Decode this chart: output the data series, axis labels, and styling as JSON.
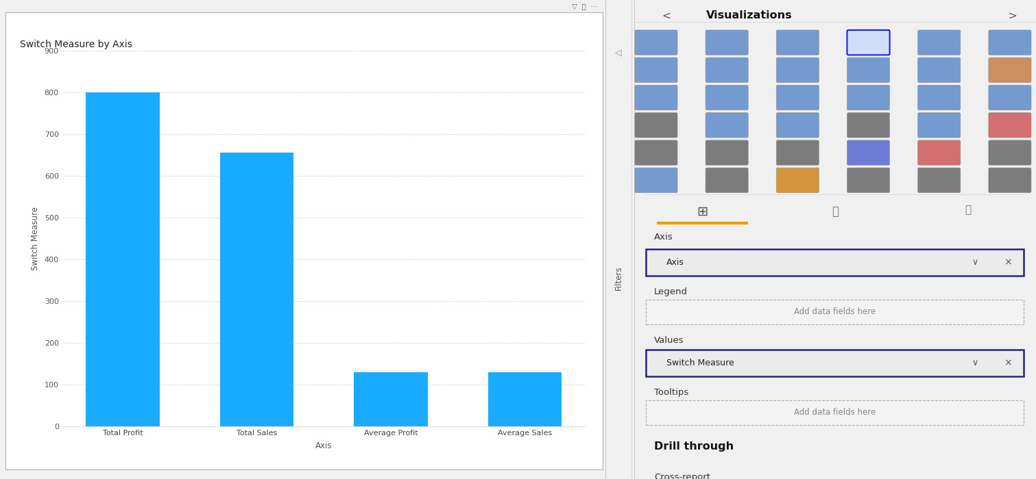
{
  "categories": [
    "Total Profit",
    "Total Sales",
    "Average Profit",
    "Average Sales"
  ],
  "values": [
    800,
    655,
    130,
    130
  ],
  "bar_color": "#1aabff",
  "title": "Switch Measure by Axis",
  "xlabel": "Axis",
  "ylabel": "Switch Measure",
  "ylim": [
    0,
    900
  ],
  "yticks": [
    0,
    100,
    200,
    300,
    400,
    500,
    600,
    700,
    800,
    900
  ],
  "chart_bg": "#ffffff",
  "outer_bg": "#f0f0f0",
  "panel_bg": "#f3f3f3",
  "grid_color": "#c8c8c8",
  "title_fontsize": 10,
  "axis_label_fontsize": 8.5,
  "tick_fontsize": 8,
  "chart_border_color": "#b0b0b0",
  "right_panel_title": "Visualizations",
  "right_panel_bg": "#f3f3f3",
  "axis_section_label": "Axis",
  "axis_field": "Axis",
  "legend_section_label": "Legend",
  "legend_placeholder": "Add data fields here",
  "values_section_label": "Values",
  "values_field": "Switch Measure",
  "tooltips_section_label": "Tooltips",
  "tooltips_placeholder": "Add data fields here",
  "drillthrough_section_label": "Drill through",
  "cross_report_label": "Cross-report",
  "filters_label": "Filters",
  "icon_colors_row1": [
    "#4472c4",
    "#4472c4",
    "#4472c4",
    "#4472c4",
    "#4472c4",
    "#4472c4"
  ],
  "icon_colors_row2": [
    "#4472c4",
    "#4472c4",
    "#4472c4",
    "#4472c4",
    "#4472c4",
    "#4472c4"
  ],
  "icon_colors_row3": [
    "#4472c4",
    "#4472c4",
    "#4472c4",
    "#4472c4",
    "#4472c4",
    "#4472c4"
  ],
  "icon_colors_row4": [
    "#4472c4",
    "#4472c4",
    "#4472c4",
    "#4472c4",
    "#4472c4",
    "#4472c4"
  ],
  "icon_colors_row5": [
    "#4472c4",
    "#4472c4",
    "#4472c4",
    "#4472c4",
    "#4472c4",
    "#4472c4"
  ],
  "icon_colors_row6": [
    "#4472c4",
    "#4472c4",
    "#4472c4",
    "#4472c4",
    "#4472c4",
    "#4472c4"
  ]
}
